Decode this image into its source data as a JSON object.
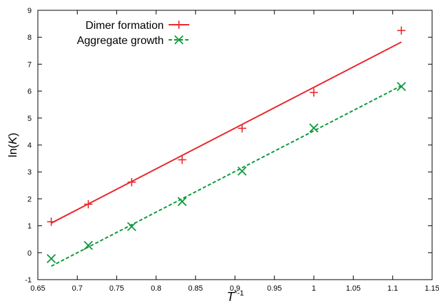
{
  "chart_data": {
    "type": "scatter",
    "xlabel_main": "T",
    "xlabel_sup": "*-1",
    "ylabel_pre": "ln(",
    "ylabel_var": "K",
    "ylabel_post": ")",
    "xlim": [
      0.65,
      1.15
    ],
    "ylim": [
      -1,
      9
    ],
    "xticks": [
      "0.65",
      "0.7",
      "0.75",
      "0.8",
      "0.85",
      "0.9",
      "0.95",
      "1",
      "1.05",
      "1.1",
      "1.15"
    ],
    "yticks": [
      "-1",
      "0",
      "1",
      "2",
      "3",
      "4",
      "5",
      "6",
      "7",
      "8",
      "9"
    ],
    "legend_position": "top-left",
    "grid": false,
    "series": [
      {
        "name": "Dimer formation",
        "color": "#e8262b",
        "marker": "plus",
        "line_style": "solid",
        "points": [
          {
            "x": 0.667,
            "y": 1.15
          },
          {
            "x": 0.714,
            "y": 1.8
          },
          {
            "x": 0.769,
            "y": 2.62
          },
          {
            "x": 0.833,
            "y": 3.45
          },
          {
            "x": 0.909,
            "y": 4.62
          },
          {
            "x": 1.0,
            "y": 5.95
          },
          {
            "x": 1.111,
            "y": 8.25
          }
        ],
        "fit": [
          {
            "x": 0.667,
            "y": 1.1
          },
          {
            "x": 1.111,
            "y": 7.82
          }
        ]
      },
      {
        "name": "Aggregate growth",
        "color": "#0b9a3a",
        "marker": "cross",
        "line_style": "dashed",
        "points": [
          {
            "x": 0.667,
            "y": -0.22
          },
          {
            "x": 0.714,
            "y": 0.27
          },
          {
            "x": 0.769,
            "y": 0.97
          },
          {
            "x": 0.833,
            "y": 1.9
          },
          {
            "x": 0.909,
            "y": 3.03
          },
          {
            "x": 1.0,
            "y": 4.63
          },
          {
            "x": 1.111,
            "y": 6.17
          }
        ],
        "fit": [
          {
            "x": 0.667,
            "y": -0.5
          },
          {
            "x": 1.111,
            "y": 6.2
          }
        ]
      }
    ]
  }
}
